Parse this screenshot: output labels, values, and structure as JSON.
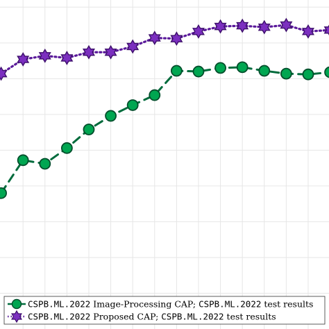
{
  "chart_data": {
    "type": "line",
    "title": "",
    "xlabel": "",
    "ylabel": "",
    "grid": true,
    "legend_position": "bottom-right",
    "x": [
      0,
      1,
      2,
      3,
      4,
      5,
      6,
      7,
      8,
      9,
      10,
      11,
      12,
      13,
      14,
      15
    ],
    "xlim": [
      -0.05,
      14.95
    ],
    "ylim": [
      0,
      460
    ],
    "series": [
      {
        "name_prefix": "CSPB.ML.2022",
        "name_mid": " Image-Processing CAP; ",
        "name_code": "CSPB.ML.2022",
        "name_suffix": " test results",
        "color": "#00a651",
        "line_color": "#006b3c",
        "marker": "circle",
        "line_style": "dashed",
        "values": [
          190,
          236,
          231,
          253,
          279,
          298,
          313,
          327,
          361,
          360,
          365,
          366,
          361,
          357,
          356,
          359
        ]
      },
      {
        "name_prefix": "CSPB.ML.2022",
        "name_mid": " Proposed CAP; ",
        "name_code": "CSPB.ML.2022",
        "name_suffix": " test results",
        "color": "#7b2fbf",
        "line_color": "#5a1a9a",
        "marker": "hexagram",
        "line_style": "dotted",
        "values": [
          357,
          377,
          382,
          379,
          387,
          387,
          395,
          407,
          406,
          416,
          423,
          424,
          422,
          425,
          416,
          418
        ]
      }
    ]
  }
}
